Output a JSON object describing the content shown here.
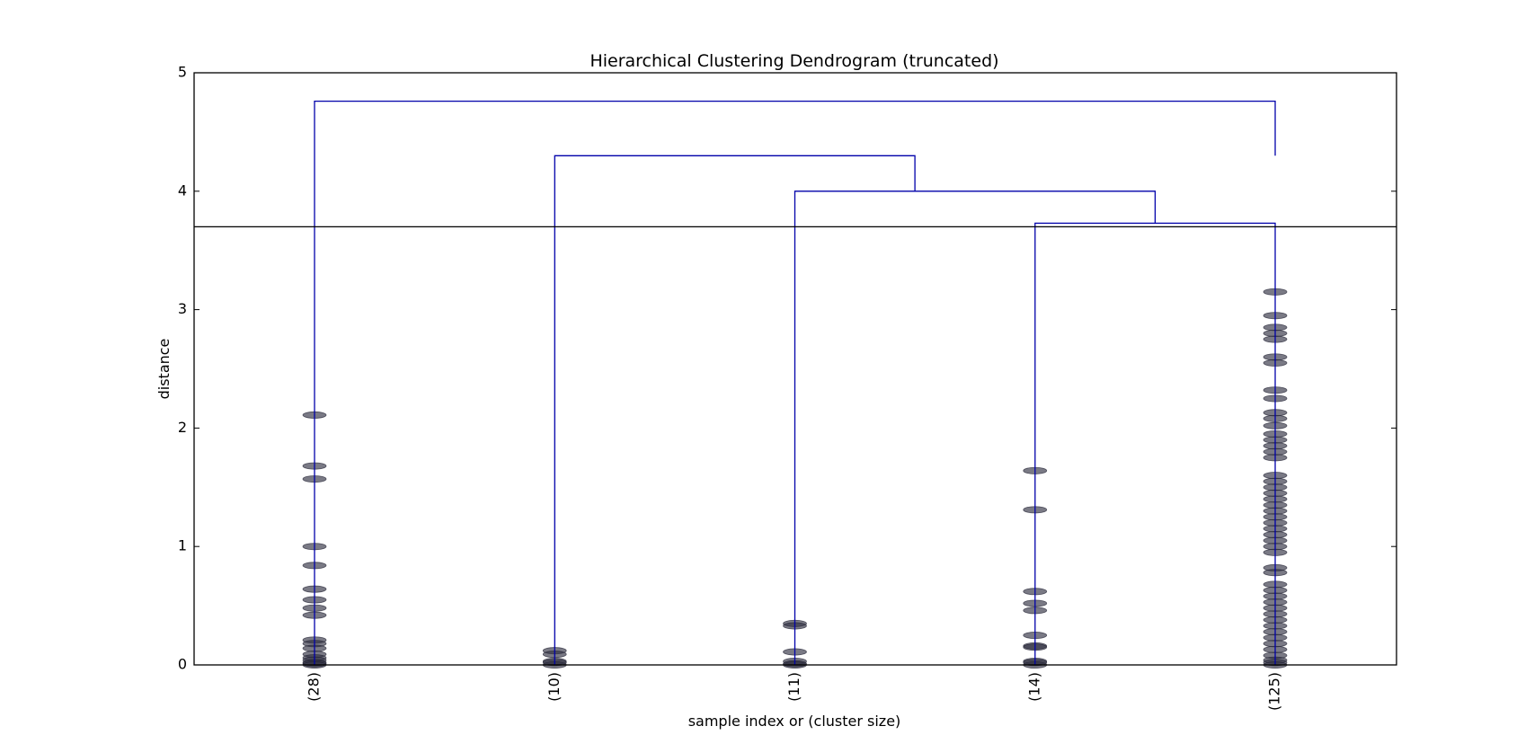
{
  "chart_data": {
    "type": "dendrogram",
    "title": "Hierarchical Clustering Dendrogram (truncated)",
    "xlabel": "sample index or (cluster size)",
    "ylabel": "distance",
    "ylim": [
      0,
      5
    ],
    "yticks": [
      0,
      1,
      2,
      3,
      4,
      5
    ],
    "grid": false,
    "leaves": [
      "(28)",
      "(10)",
      "(11)",
      "(14)",
      "(125)"
    ],
    "cut_height": 3.7,
    "link_color": "#0000aa",
    "line_color": "#000000",
    "marker_color": "#333344",
    "merges": [
      {
        "left": "(14)",
        "right": "(125)",
        "distance": 3.73
      },
      {
        "left": "(11)",
        "right": "(14)+(125)",
        "distance": 4.0
      },
      {
        "left": "(10)",
        "right": "(11)+(14)+(125)",
        "distance": 4.3
      },
      {
        "left": "(28)",
        "right": "(10)+(11)+(14)+(125)",
        "distance": 4.76
      }
    ],
    "links": [
      {
        "x": [
          0,
          0,
          4,
          4
        ],
        "y": [
          0.0,
          4.76,
          4.76,
          4.3
        ]
      },
      {
        "x": [
          1,
          1,
          2.5,
          2.5
        ],
        "y": [
          0.0,
          4.3,
          4.3,
          4.0
        ]
      },
      {
        "x": [
          2,
          2,
          3.5,
          3.5
        ],
        "y": [
          0.0,
          4.0,
          4.0,
          3.73
        ]
      },
      {
        "x": [
          3,
          3,
          4,
          4
        ],
        "y": [
          0.0,
          3.73,
          3.73,
          0.0
        ]
      }
    ],
    "leaf_heights": [
      [
        2.11,
        1.68,
        1.57,
        1.0,
        0.84,
        0.64,
        0.55,
        0.48,
        0.42,
        0.21,
        0.18,
        0.14,
        0.09,
        0.06,
        0.04,
        0.02,
        0.01,
        0.0
      ],
      [
        0.12,
        0.09,
        0.03,
        0.02,
        0.0
      ],
      [
        0.35,
        0.33,
        0.11,
        0.03,
        0.01,
        0.0
      ],
      [
        1.64,
        1.31,
        0.62,
        0.52,
        0.46,
        0.25,
        0.16,
        0.15,
        0.03,
        0.02,
        0.0
      ],
      [
        3.15,
        2.95,
        2.85,
        2.8,
        2.75,
        2.6,
        2.55,
        2.32,
        2.25,
        2.13,
        2.08,
        2.02,
        1.95,
        1.9,
        1.85,
        1.8,
        1.75,
        1.6,
        1.55,
        1.5,
        1.45,
        1.4,
        1.35,
        1.3,
        1.25,
        1.2,
        1.15,
        1.1,
        1.05,
        1.0,
        0.95,
        0.82,
        0.78,
        0.68,
        0.63,
        0.58,
        0.53,
        0.48,
        0.43,
        0.38,
        0.33,
        0.28,
        0.23,
        0.18,
        0.13,
        0.08,
        0.04,
        0.02,
        0.0
      ]
    ]
  }
}
